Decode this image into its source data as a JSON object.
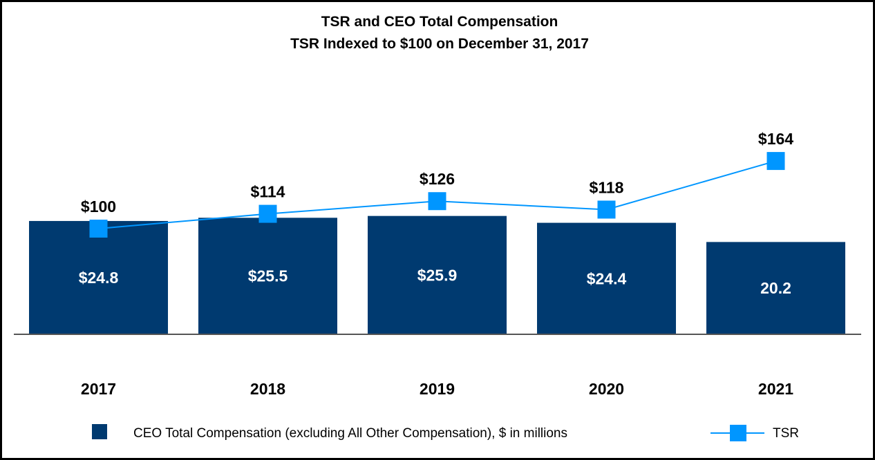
{
  "chart_data": {
    "type": "bar",
    "title": "TSR and CEO Total Compensation",
    "subtitle": "TSR Indexed to $100 on December 31, 2017",
    "categories": [
      "2017",
      "2018",
      "2019",
      "2020",
      "2021"
    ],
    "series": [
      {
        "name": "CEO Total Compensation (excluding All Other Compensation), $ in millions",
        "type": "bar",
        "values": [
          24.8,
          25.5,
          25.9,
          24.4,
          20.2
        ],
        "labels": [
          "$24.8",
          "$25.5",
          "$25.9",
          "$24.4",
          "20.2"
        ],
        "color": "#003a70"
      },
      {
        "name": "TSR",
        "type": "line",
        "marker": "square",
        "values": [
          100,
          114,
          126,
          118,
          164
        ],
        "labels": [
          "$100",
          "$114",
          "$126",
          "$118",
          "$164"
        ],
        "color": "#0096ff"
      }
    ],
    "bar_axis_range": [
      0,
      30
    ],
    "line_axis_range": [
      0,
      220
    ],
    "legend_position": "bottom",
    "grid": false
  }
}
